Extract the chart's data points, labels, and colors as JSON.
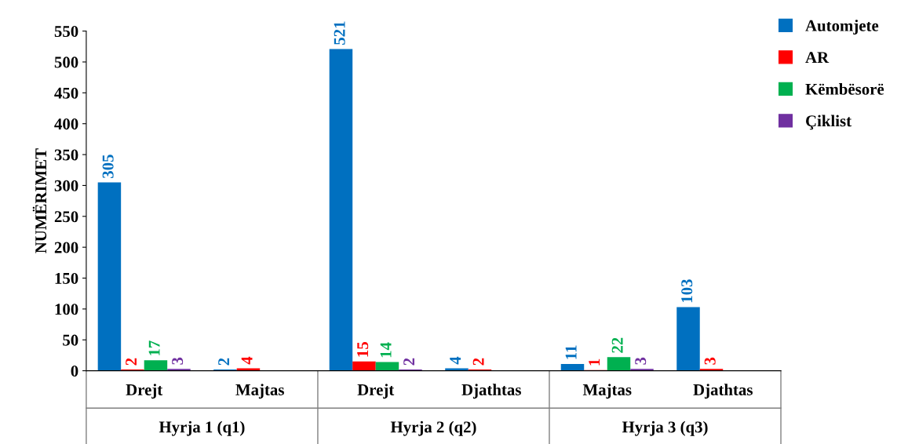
{
  "chart_data": {
    "type": "bar",
    "ylabel": "NUMËRIMET",
    "categories": [
      "Drejt",
      "Majtas",
      "Drejt",
      "Djathtas",
      "Majtas",
      "Djathtas"
    ],
    "annotations": [
      "Hyrja 1 (q1)",
      "Hyrja 2 (q2)",
      "Hyrja 3 (q3)"
    ],
    "series": [
      {
        "name": "Automjete",
        "color": "#0070c0",
        "values": [
          305,
          2,
          521,
          4,
          11,
          103
        ]
      },
      {
        "name": "AR",
        "color": "#ff0000",
        "values": [
          2,
          4,
          15,
          2,
          1,
          3
        ]
      },
      {
        "name": "Këmbësorë",
        "color": "#00b050",
        "values": [
          17,
          null,
          14,
          null,
          22,
          null
        ]
      },
      {
        "name": "Çiklist",
        "color": "#7030a0",
        "values": [
          3,
          null,
          2,
          null,
          3,
          null
        ]
      }
    ],
    "ylim": [
      0,
      550
    ],
    "yticks": [
      0,
      50,
      100,
      150,
      200,
      250,
      300,
      350,
      400,
      450,
      500,
      550
    ],
    "data_labels": true,
    "grid": false,
    "legend": "top right"
  }
}
